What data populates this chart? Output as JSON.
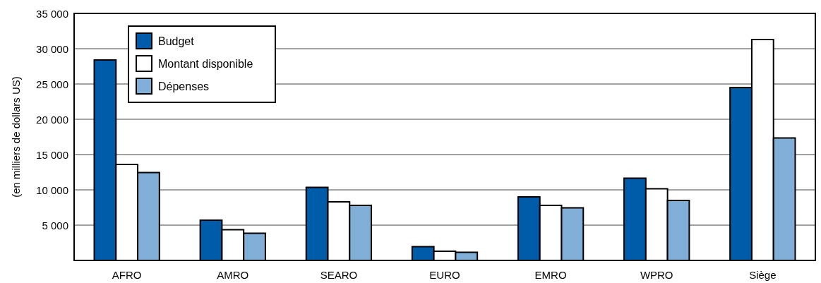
{
  "chart_data": {
    "type": "bar",
    "ylabel": "(en milliers de dollars US)",
    "categories": [
      "AFRO",
      "AMRO",
      "SEARO",
      "EURO",
      "EMRO",
      "WPRO",
      "Siège"
    ],
    "series": [
      {
        "name": "Budget",
        "color": "#005ba8",
        "values": [
          28400,
          5700,
          10350,
          1950,
          9000,
          11650,
          24500
        ]
      },
      {
        "name": "Montant disponible",
        "color": "#ffffff",
        "values": [
          13600,
          4350,
          8300,
          1300,
          7800,
          10150,
          31300
        ]
      },
      {
        "name": "Dépenses",
        "color": "#80aed6",
        "values": [
          12450,
          3850,
          7800,
          1150,
          7450,
          8500,
          17350
        ]
      }
    ],
    "ylim": [
      0,
      35000
    ],
    "yticks": [
      {
        "value": 5000,
        "label": "5 000"
      },
      {
        "value": 10000,
        "label": "10 000"
      },
      {
        "value": 15000,
        "label": "15 000"
      },
      {
        "value": 20000,
        "label": "20 000"
      },
      {
        "value": 25000,
        "label": "25 000"
      },
      {
        "value": 30000,
        "label": "30 000"
      },
      {
        "value": 35000,
        "label": "35 000"
      }
    ],
    "grid": "y",
    "legend": "top left"
  }
}
